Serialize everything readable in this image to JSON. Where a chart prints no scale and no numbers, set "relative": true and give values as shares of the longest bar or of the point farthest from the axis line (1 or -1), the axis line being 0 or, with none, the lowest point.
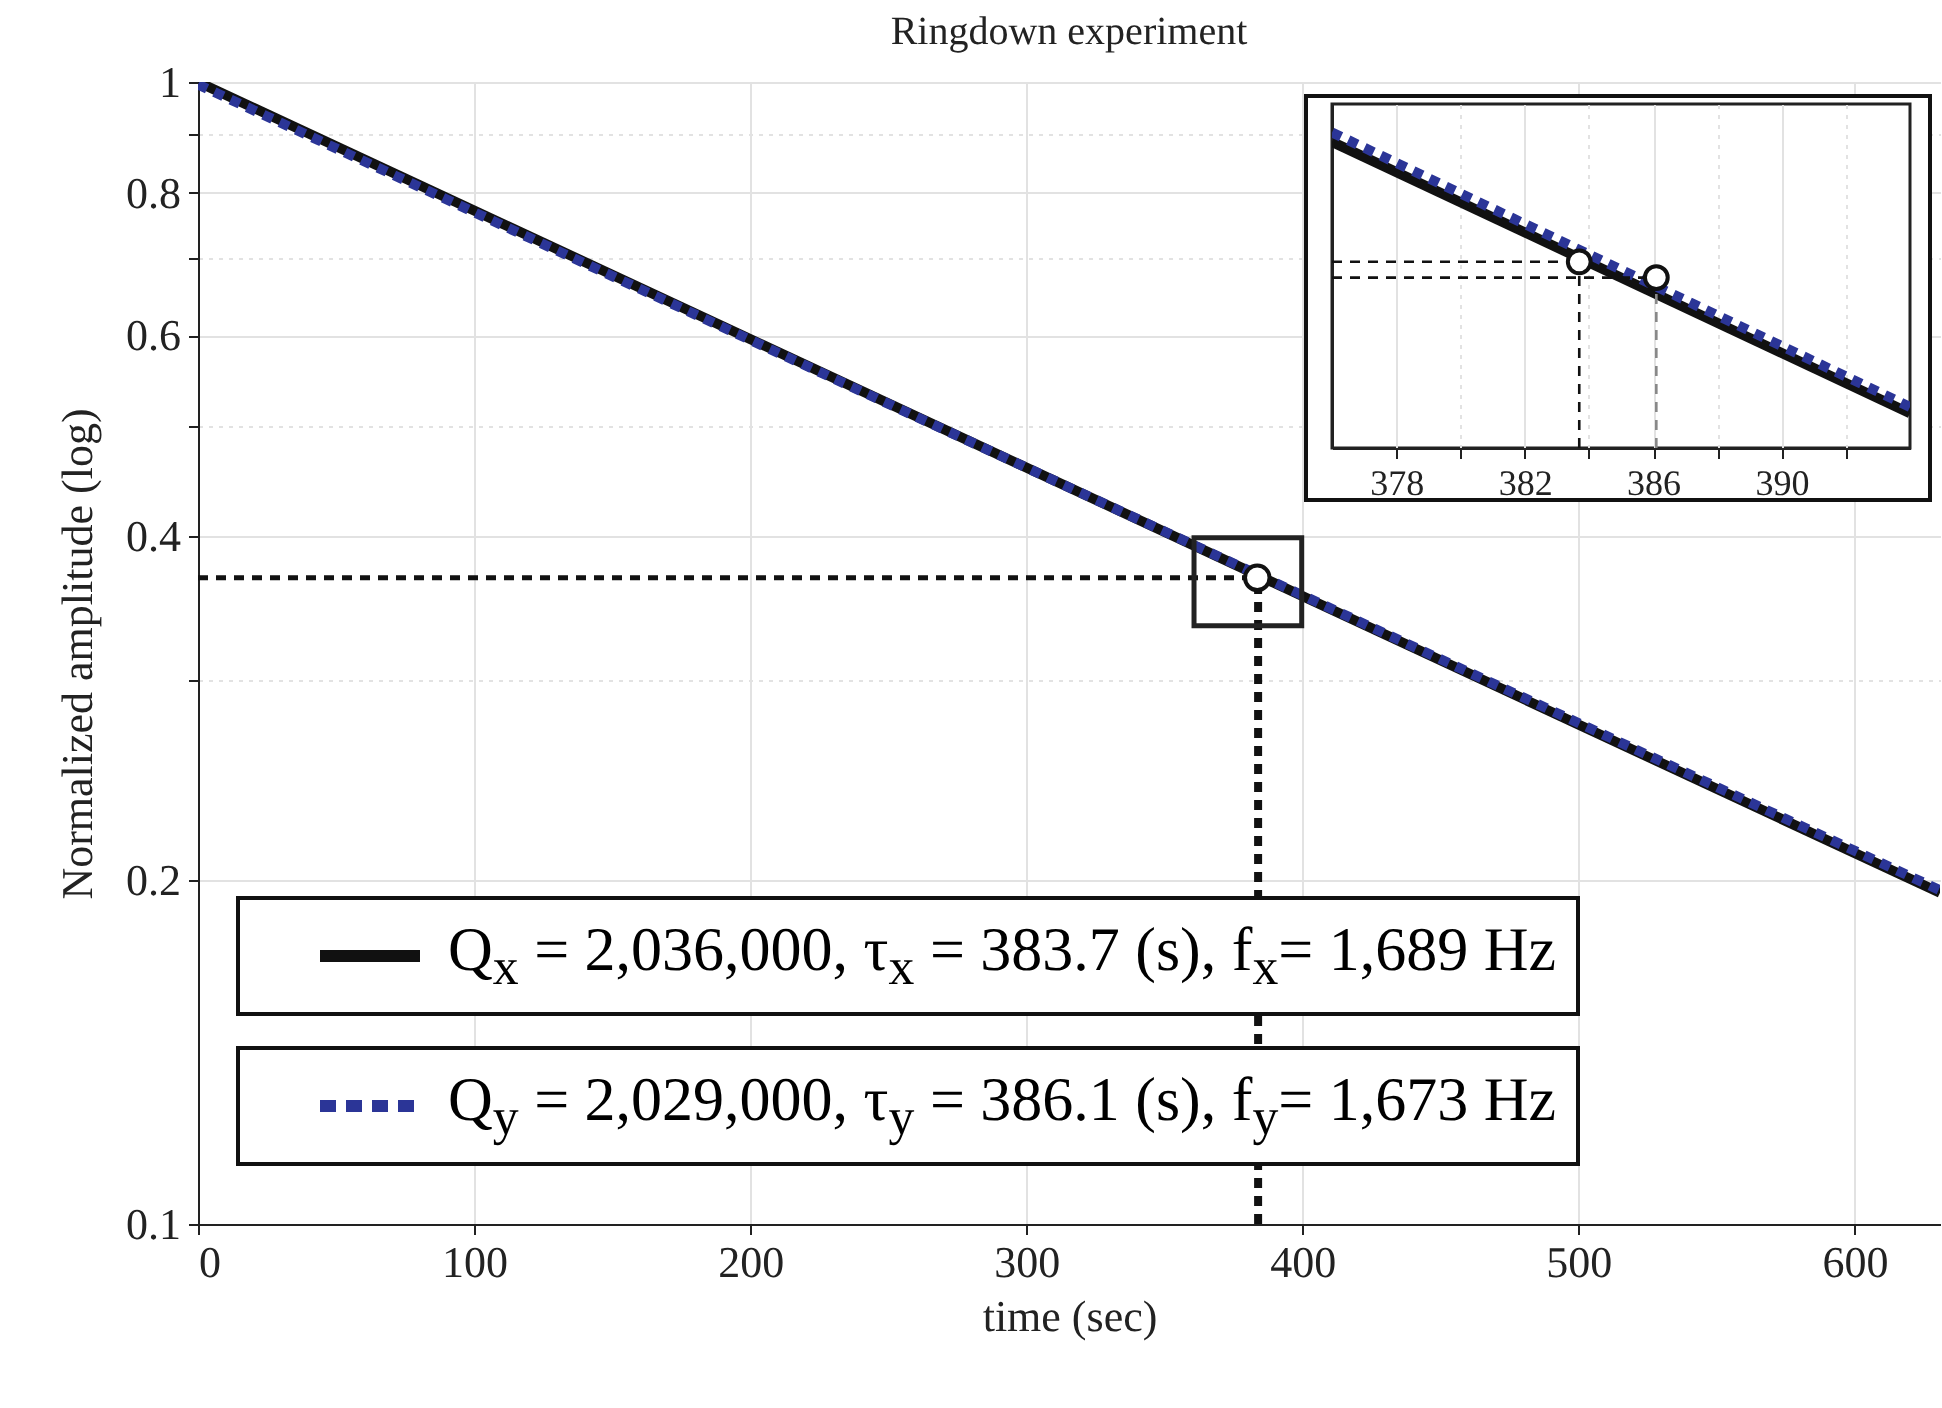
{
  "chart_data": [
    {
      "type": "line",
      "title": "Ringdown experiment",
      "xlabel": "time (sec)",
      "ylabel": "Normalized amplitude (log)",
      "xlim": [
        0,
        631
      ],
      "ylim": [
        0.1,
        1
      ],
      "xticks": [
        0,
        100,
        200,
        300,
        400,
        500,
        600
      ],
      "yticks": [
        0.1,
        0.2,
        {
          "value": 0.3,
          "label": null
        },
        0.4,
        {
          "value": 0.5,
          "label": null
        },
        0.6,
        {
          "value": 0.7,
          "label": null
        },
        0.8,
        {
          "value": 0.9,
          "label": null
        },
        1
      ],
      "log": "y",
      "grid": true,
      "legend": "bottom",
      "series": [
        {
          "name": "Q$_{x}$ = 2,036,000, τ$_{x}$ = 383.7 (s), f$_{x}$= 1,689 Hz",
          "color": "#111111",
          "x": [
            0,
            631
          ],
          "values": [
            1,
            0.195
          ]
        },
        {
          "name": "Q$_{y}$ = 2,029,000, τ$_{y}$ = 386.1 (s), f$_{y}$= 1,673 Hz",
          "color": "#2b3597",
          "line_style": "dotted",
          "x": [
            0,
            631
          ],
          "values": [
            0.995,
            0.196
          ]
        },
        {
          "color": "#111111",
          "line_style": "dotted",
          "x": [
            0,
            383.7
          ],
          "values": [
            0.368,
            0.368
          ]
        },
        {
          "color": "#111111",
          "line_style": "dotted",
          "x": [
            384,
            384
          ],
          "values": [
            0.1,
            0.368
          ]
        },
        {
          "type": "scatter",
          "marker": "circle",
          "color": "#111111",
          "x": [
            383.7
          ],
          "values": [
            0.368
          ]
        }
      ]
    },
    {
      "type": "line",
      "relative": true,
      "xlim": [
        376,
        394
      ],
      "xticks": [
        378,
        {
          "value": 380,
          "label": null
        },
        382,
        {
          "value": 384,
          "label": null
        },
        386,
        {
          "value": 388,
          "label": null
        },
        390,
        {
          "value": 392,
          "label": null
        }
      ],
      "grid": "x",
      "series": [
        {
          "color": "#111111",
          "x": [
            376,
            394
          ],
          "values": [
            0.97,
            0.11
          ]
        },
        {
          "color": "#2b3597",
          "line_style": "dotted",
          "x": [
            376,
            394
          ],
          "values": [
            1,
            0.13
          ]
        },
        {
          "color": "#111111",
          "line_style": "dotted",
          "x": [
            376,
            383.7
          ],
          "values": [
            0.59,
            0.59
          ]
        },
        {
          "color": "#111111",
          "line_style": "dotted",
          "x": [
            376,
            386.1
          ],
          "values": [
            0.54,
            0.54
          ]
        },
        {
          "color": "#111111",
          "line_style": "dotted",
          "x": [
            383.7,
            383.7
          ],
          "values": [
            0,
            0.59
          ]
        },
        {
          "color": "#888888",
          "line_style": "dotted",
          "x": [
            386.1,
            386.1
          ],
          "values": [
            0,
            0.54
          ]
        },
        {
          "type": "scatter",
          "marker": "circle",
          "color": "#111111",
          "x": [
            383.7,
            386.1
          ],
          "values": [
            0.59,
            0.54
          ]
        }
      ]
    }
  ]
}
